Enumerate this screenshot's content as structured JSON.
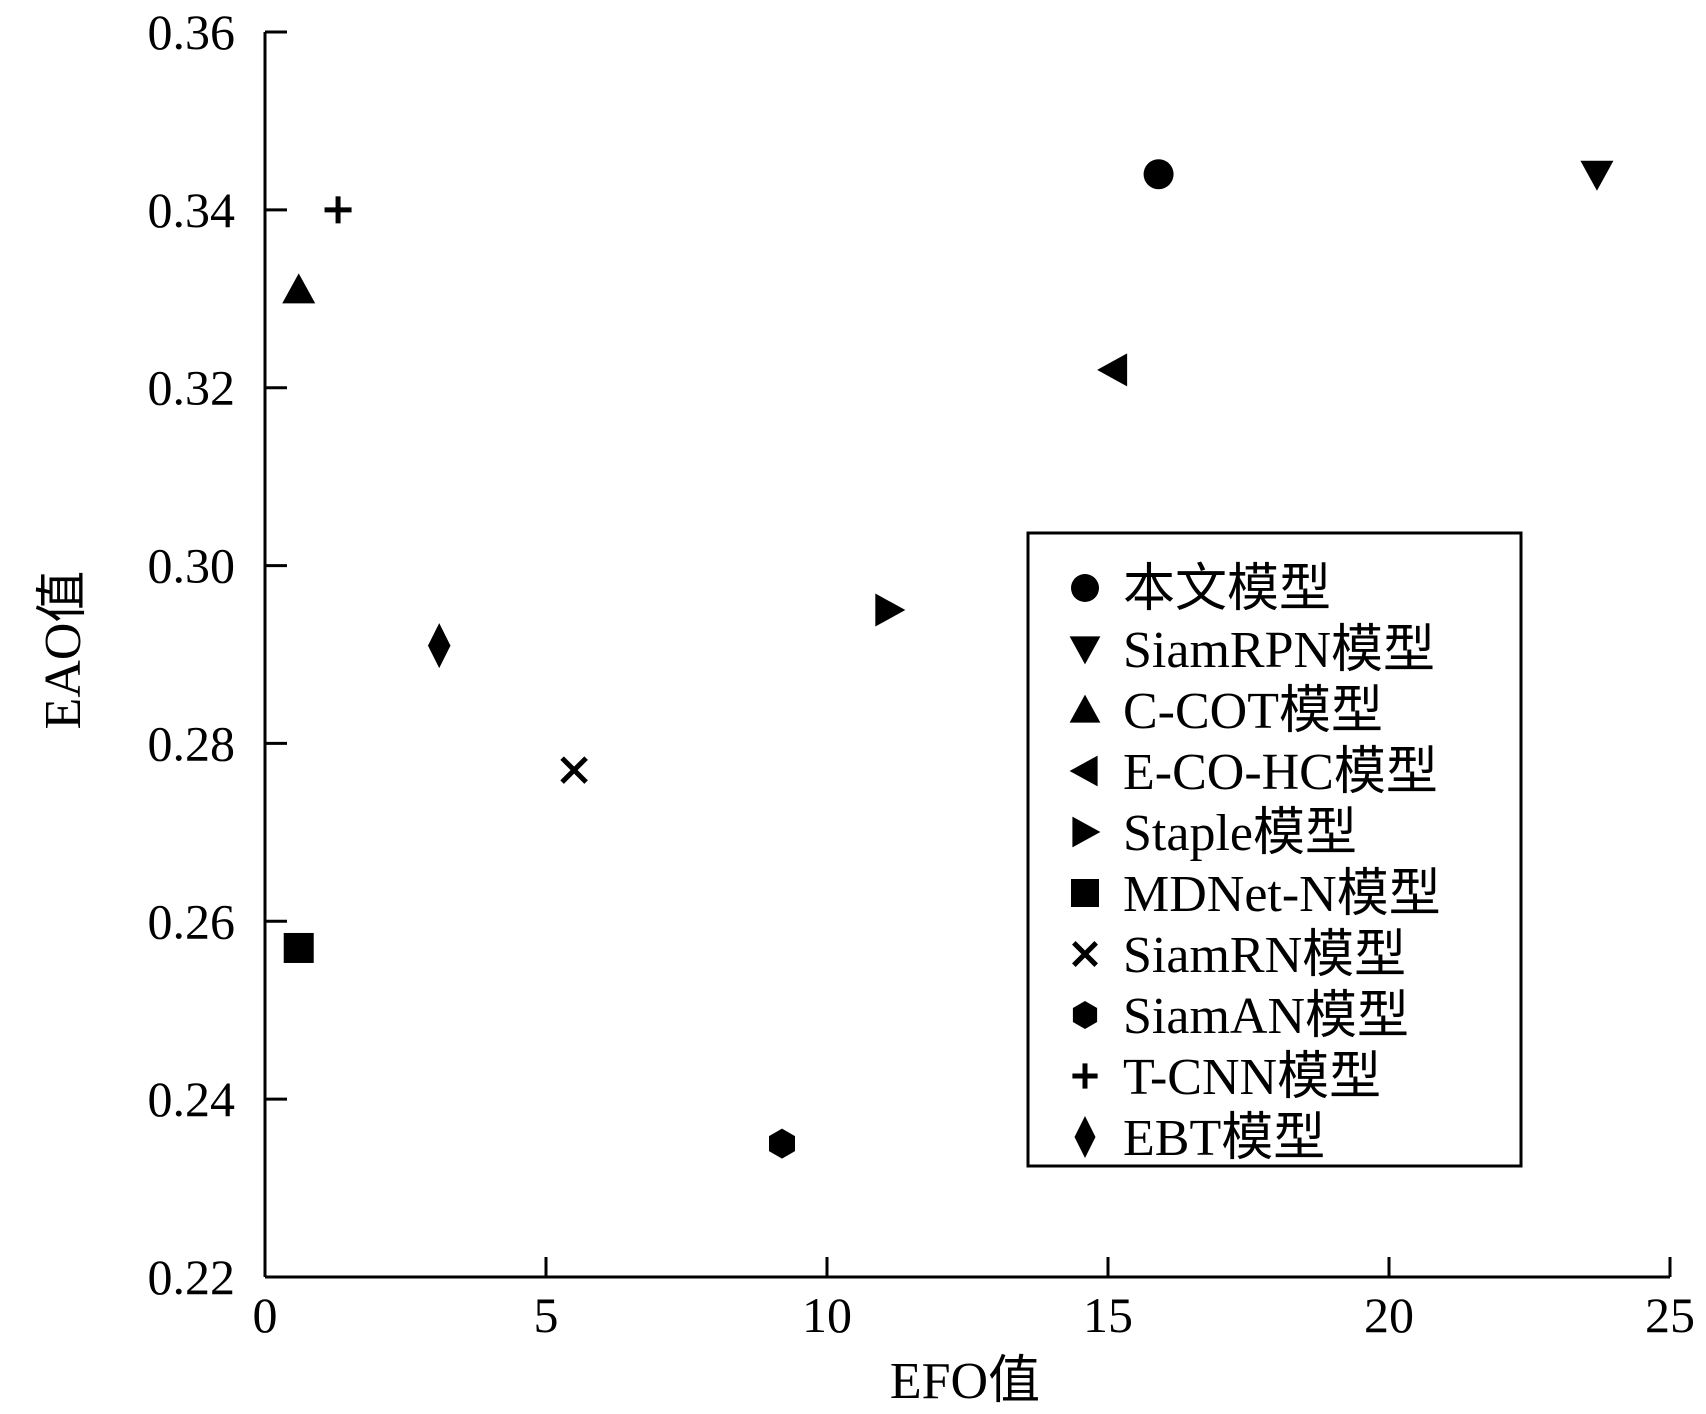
{
  "chart_data": {
    "type": "scatter",
    "title": "",
    "xlabel": "EFO值",
    "ylabel": "EAO值",
    "xlim": [
      0,
      25
    ],
    "ylim": [
      0.22,
      0.36
    ],
    "x_ticks": [
      "0",
      "5",
      "10",
      "15",
      "20",
      "25"
    ],
    "y_ticks": [
      "0.22",
      "0.24",
      "0.26",
      "0.28",
      "0.30",
      "0.32",
      "0.34",
      "0.36"
    ],
    "grid": false,
    "legend_position": "center-right",
    "series": [
      {
        "name": "本文模型",
        "marker": "circle",
        "x": 15.9,
        "y": 0.344
      },
      {
        "name": "SiamRPN模型",
        "marker": "triangle-down",
        "x": 23.7,
        "y": 0.344
      },
      {
        "name": "C-COT模型",
        "marker": "triangle-up",
        "x": 0.6,
        "y": 0.331
      },
      {
        "name": "E-CO-HC模型",
        "marker": "triangle-left",
        "x": 15.1,
        "y": 0.322
      },
      {
        "name": "Staple模型",
        "marker": "triangle-right",
        "x": 11.1,
        "y": 0.295
      },
      {
        "name": "MDNet-N模型",
        "marker": "square",
        "x": 0.6,
        "y": 0.257
      },
      {
        "name": "SiamRN模型",
        "marker": "x",
        "x": 5.5,
        "y": 0.277
      },
      {
        "name": "SiamAN模型",
        "marker": "hexagon",
        "x": 9.2,
        "y": 0.235
      },
      {
        "name": "T-CNN模型",
        "marker": "plus",
        "x": 1.3,
        "y": 0.34
      },
      {
        "name": "EBT模型",
        "marker": "diamond",
        "x": 3.1,
        "y": 0.291
      }
    ]
  }
}
